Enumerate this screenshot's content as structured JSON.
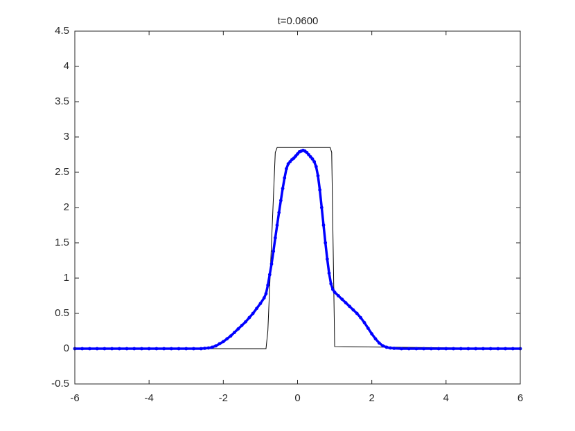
{
  "chart_data": {
    "type": "line",
    "title": "t=0.0600",
    "xlim": [
      -6,
      6
    ],
    "xticks": [
      -6,
      -4,
      -2,
      0,
      2,
      4,
      6
    ],
    "ylim": [
      -0.5,
      4.5
    ],
    "yticks": [
      -0.5,
      0,
      0.5,
      1,
      1.5,
      2,
      2.5,
      3,
      3.5,
      4,
      4.5
    ],
    "grid": false,
    "box": true,
    "series": [
      {
        "color": "#000000",
        "mode": "line",
        "x": [
          -6,
          -0.85,
          -0.8,
          -0.6,
          -0.55,
          0.88,
          0.92,
          1.0,
          6
        ],
        "values": [
          0,
          0,
          0.25,
          2.78,
          2.85,
          2.85,
          2.78,
          0.03,
          0
        ]
      },
      {
        "color": "#0000ff",
        "mode": "markers",
        "x": [
          -6,
          -5.8,
          -5.6,
          -5.4,
          -5.2,
          -5,
          -4.8,
          -4.6,
          -4.4,
          -4.2,
          -4,
          -3.8,
          -3.6,
          -3.4,
          -3.2,
          -3,
          -2.8,
          -2.6,
          -2.5,
          -2.4,
          -2.3,
          -2.2,
          -2.1,
          -2,
          -1.9,
          -1.8,
          -1.7,
          -1.6,
          -1.5,
          -1.4,
          -1.3,
          -1.2,
          -1.1,
          -1,
          -0.9,
          -0.85,
          -0.8,
          -0.75,
          -0.7,
          -0.65,
          -0.6,
          -0.55,
          -0.5,
          -0.45,
          -0.4,
          -0.35,
          -0.3,
          -0.25,
          -0.2,
          -0.15,
          -0.1,
          -0.05,
          0,
          0.05,
          0.1,
          0.15,
          0.2,
          0.25,
          0.3,
          0.35,
          0.4,
          0.45,
          0.5,
          0.55,
          0.6,
          0.65,
          0.7,
          0.75,
          0.8,
          0.85,
          0.9,
          0.95,
          1,
          1.1,
          1.2,
          1.3,
          1.4,
          1.5,
          1.6,
          1.7,
          1.8,
          1.9,
          2,
          2.1,
          2.2,
          2.3,
          2.4,
          2.5,
          2.6,
          2.8,
          3,
          3.2,
          3.4,
          3.6,
          3.8,
          4,
          4.2,
          4.4,
          4.6,
          4.8,
          5,
          5.2,
          5.4,
          5.6,
          5.8,
          6
        ],
        "values": [
          0,
          0,
          0,
          0,
          0,
          0,
          0,
          0,
          0,
          0,
          0,
          0,
          0,
          0,
          0,
          0,
          0,
          0,
          0.005,
          0.01,
          0.02,
          0.04,
          0.07,
          0.1,
          0.14,
          0.18,
          0.23,
          0.28,
          0.33,
          0.38,
          0.44,
          0.5,
          0.57,
          0.64,
          0.72,
          0.78,
          0.9,
          1.05,
          1.2,
          1.38,
          1.57,
          1.75,
          1.93,
          2.1,
          2.27,
          2.42,
          2.55,
          2.62,
          2.65,
          2.68,
          2.7,
          2.73,
          2.76,
          2.79,
          2.8,
          2.81,
          2.8,
          2.78,
          2.75,
          2.72,
          2.69,
          2.65,
          2.58,
          2.45,
          2.25,
          2,
          1.75,
          1.5,
          1.27,
          1.07,
          0.92,
          0.84,
          0.8,
          0.75,
          0.7,
          0.65,
          0.6,
          0.55,
          0.5,
          0.44,
          0.37,
          0.29,
          0.21,
          0.14,
          0.08,
          0.04,
          0.02,
          0.01,
          0.005,
          0,
          0,
          0,
          0,
          0,
          0,
          0,
          0,
          0,
          0,
          0,
          0,
          0,
          0,
          0,
          0,
          0
        ]
      }
    ]
  }
}
